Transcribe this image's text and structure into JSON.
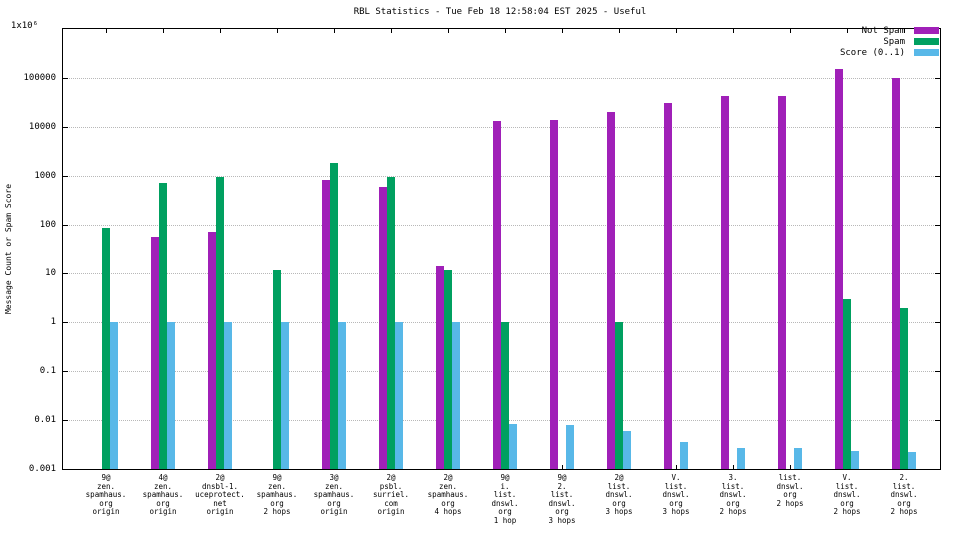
{
  "chart_data": {
    "type": "bar",
    "title": "RBL Statistics - Tue Feb 18 12:58:04 EST 2025 - Useful",
    "ylabel": "Message Count or Spam Score",
    "y_scale": "log",
    "ylim": [
      0.001,
      1000000
    ],
    "y_ticks": [
      "0.001",
      "0.01",
      "0.1",
      "1",
      "10",
      "100",
      "1000",
      "10000",
      "100000"
    ],
    "y_top_label": "1x10⁶",
    "grid": true,
    "legend_position": "top-right",
    "colors": {
      "not_spam": "#a020b8",
      "spam": "#00a060",
      "score": "#58b8e8"
    },
    "series": [
      {
        "name": "Not Spam",
        "key": "notspam",
        "color": "#a020b8",
        "values": [
          null,
          55,
          70,
          null,
          800,
          600,
          14,
          13000,
          13500,
          20000,
          30000,
          42000,
          42000,
          150000,
          100000
        ]
      },
      {
        "name": "Spam",
        "key": "spam",
        "color": "#00a060",
        "values": [
          85,
          700,
          950,
          12,
          1800,
          950,
          12,
          1,
          null,
          1,
          null,
          null,
          null,
          3,
          2
        ]
      },
      {
        "name": "Score (0..1)",
        "key": "score",
        "color": "#58b8e8",
        "values": [
          1,
          1,
          1,
          1,
          1,
          1,
          1,
          0.0085,
          0.008,
          0.006,
          0.0035,
          0.0027,
          0.0027,
          0.0023,
          0.0022
        ]
      }
    ],
    "categories": [
      [
        "9@",
        "zen.",
        "spamhaus.",
        "org",
        "origin"
      ],
      [
        "4@",
        "zen.",
        "spamhaus.",
        "org",
        "origin"
      ],
      [
        "2@",
        "dnsbl-1.",
        "uceprotect.",
        "net",
        "origin"
      ],
      [
        "9@",
        "zen.",
        "spamhaus.",
        "org",
        "2 hops"
      ],
      [
        "3@",
        "zen.",
        "spamhaus.",
        "org",
        "origin"
      ],
      [
        "2@",
        "psbl.",
        "surriel.",
        "com",
        "origin"
      ],
      [
        "2@",
        "zen.",
        "spamhaus.",
        "org",
        "4 hops"
      ],
      [
        "9@",
        "i.",
        "list.",
        "dnswl.",
        "org",
        "1 hop"
      ],
      [
        "9@",
        "2.",
        "list.",
        "dnswl.",
        "org",
        "3 hops"
      ],
      [
        "2@",
        "list.",
        "dnswl.",
        "org",
        "3 hops"
      ],
      [
        "V.",
        "list.",
        "dnswl.",
        "org",
        "3 hops"
      ],
      [
        "3.",
        "list.",
        "dnswl.",
        "org",
        "2 hops"
      ],
      [
        "list.",
        "dnswl.",
        "org",
        "2 hops"
      ],
      [
        "V.",
        "list.",
        "dnswl.",
        "org",
        "2 hops"
      ],
      [
        "2.",
        "list.",
        "dnswl.",
        "org",
        "2 hops"
      ]
    ]
  }
}
